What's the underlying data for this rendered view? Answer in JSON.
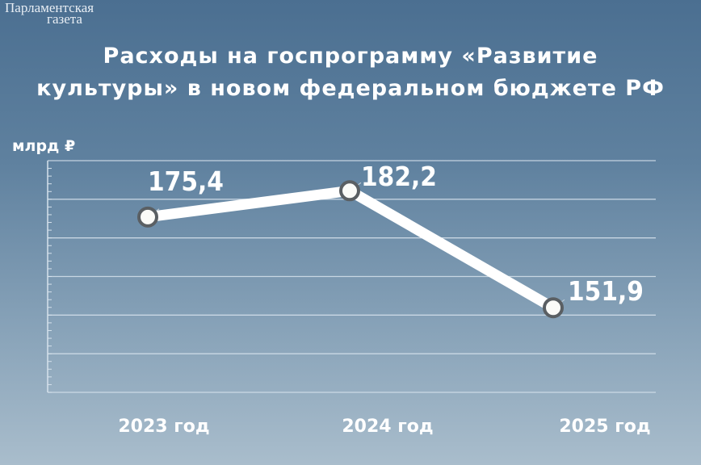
{
  "logo": {
    "line1": "Парламентская",
    "line2": "газета"
  },
  "title_line1": "Расходы на госпрограмму «Развитие",
  "title_line2": "культуры» в новом федеральном бюджете РФ",
  "chart_data": {
    "type": "line",
    "title": "Расходы на госпрограмму «Развитие культуры» в новом федеральном бюджете РФ",
    "ylabel": "млрд ₽",
    "categories": [
      "2023 год",
      "2024 год",
      "2025 год"
    ],
    "values": [
      175.4,
      182.2,
      151.9
    ],
    "value_labels": [
      "175,4",
      "182,2",
      "151,9"
    ],
    "ylim": [
      130,
      190
    ],
    "grid": true,
    "colors": {
      "line": "#ffffff",
      "marker_border": "#5a5f63",
      "grid": "#d6e2ec"
    }
  }
}
